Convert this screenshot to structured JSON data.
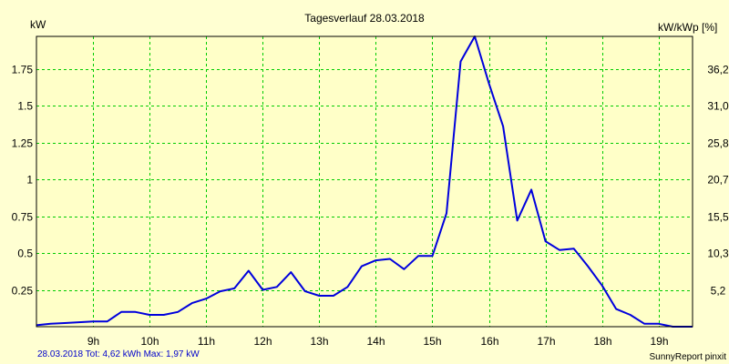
{
  "chart_data": {
    "type": "line",
    "title": "Tagesverlauf 28.03.2018",
    "y_left_unit": "kW",
    "y_right_unit": "kW/kWp [%]",
    "x_ticks": [
      "9h",
      "10h",
      "11h",
      "12h",
      "13h",
      "14h",
      "15h",
      "16h",
      "17h",
      "18h",
      "19h"
    ],
    "x_tick_values": [
      9,
      10,
      11,
      12,
      13,
      14,
      15,
      16,
      17,
      18,
      19
    ],
    "xlim": [
      8.0,
      19.6
    ],
    "y_ticks_left": [
      "0.25",
      "0.5",
      "0.75",
      "1",
      "1.25",
      "1.5",
      "1.75"
    ],
    "y_tick_values_left": [
      0.25,
      0.5,
      0.75,
      1.0,
      1.25,
      1.5,
      1.75
    ],
    "y_ticks_right": [
      "5,2",
      "10,3",
      "15,5",
      "20,7",
      "25,8",
      "31,0",
      "36,2"
    ],
    "ylim": [
      0,
      1.97
    ],
    "grid": true,
    "series": [
      {
        "color": "#0000dd",
        "points": [
          [
            8.0,
            0.01
          ],
          [
            8.25,
            0.02
          ],
          [
            8.5,
            0.025
          ],
          [
            8.75,
            0.03
          ],
          [
            9.0,
            0.035
          ],
          [
            9.25,
            0.035
          ],
          [
            9.5,
            0.1
          ],
          [
            9.75,
            0.1
          ],
          [
            10.0,
            0.08
          ],
          [
            10.25,
            0.08
          ],
          [
            10.5,
            0.1
          ],
          [
            10.75,
            0.16
          ],
          [
            11.0,
            0.19
          ],
          [
            11.25,
            0.24
          ],
          [
            11.5,
            0.26
          ],
          [
            11.75,
            0.38
          ],
          [
            12.0,
            0.25
          ],
          [
            12.25,
            0.27
          ],
          [
            12.5,
            0.37
          ],
          [
            12.75,
            0.24
          ],
          [
            13.0,
            0.21
          ],
          [
            13.25,
            0.21
          ],
          [
            13.5,
            0.27
          ],
          [
            13.75,
            0.41
          ],
          [
            14.0,
            0.45
          ],
          [
            14.25,
            0.46
          ],
          [
            14.5,
            0.39
          ],
          [
            14.75,
            0.48
          ],
          [
            15.0,
            0.48
          ],
          [
            15.25,
            0.77
          ],
          [
            15.5,
            1.8
          ],
          [
            15.75,
            1.97
          ],
          [
            16.0,
            1.65
          ],
          [
            16.25,
            1.36
          ],
          [
            16.5,
            0.72
          ],
          [
            16.75,
            0.93
          ],
          [
            17.0,
            0.58
          ],
          [
            17.25,
            0.52
          ],
          [
            17.5,
            0.53
          ],
          [
            17.75,
            0.41
          ],
          [
            18.0,
            0.28
          ],
          [
            18.25,
            0.12
          ],
          [
            18.5,
            0.08
          ],
          [
            18.75,
            0.02
          ],
          [
            19.0,
            0.02
          ],
          [
            19.25,
            0.0
          ],
          [
            19.6,
            0.0
          ]
        ]
      }
    ]
  },
  "footer": {
    "summary": "28.03.2018 Tot: 4,62 kWh Max: 1,97 kW",
    "credit": "SunnyReport pinxit"
  },
  "colors": {
    "background": "#ffffd2",
    "plot_background": "#ffffc8",
    "grid": "#00cc00",
    "line": "#0000dd",
    "summary_text": "#0000cc"
  }
}
